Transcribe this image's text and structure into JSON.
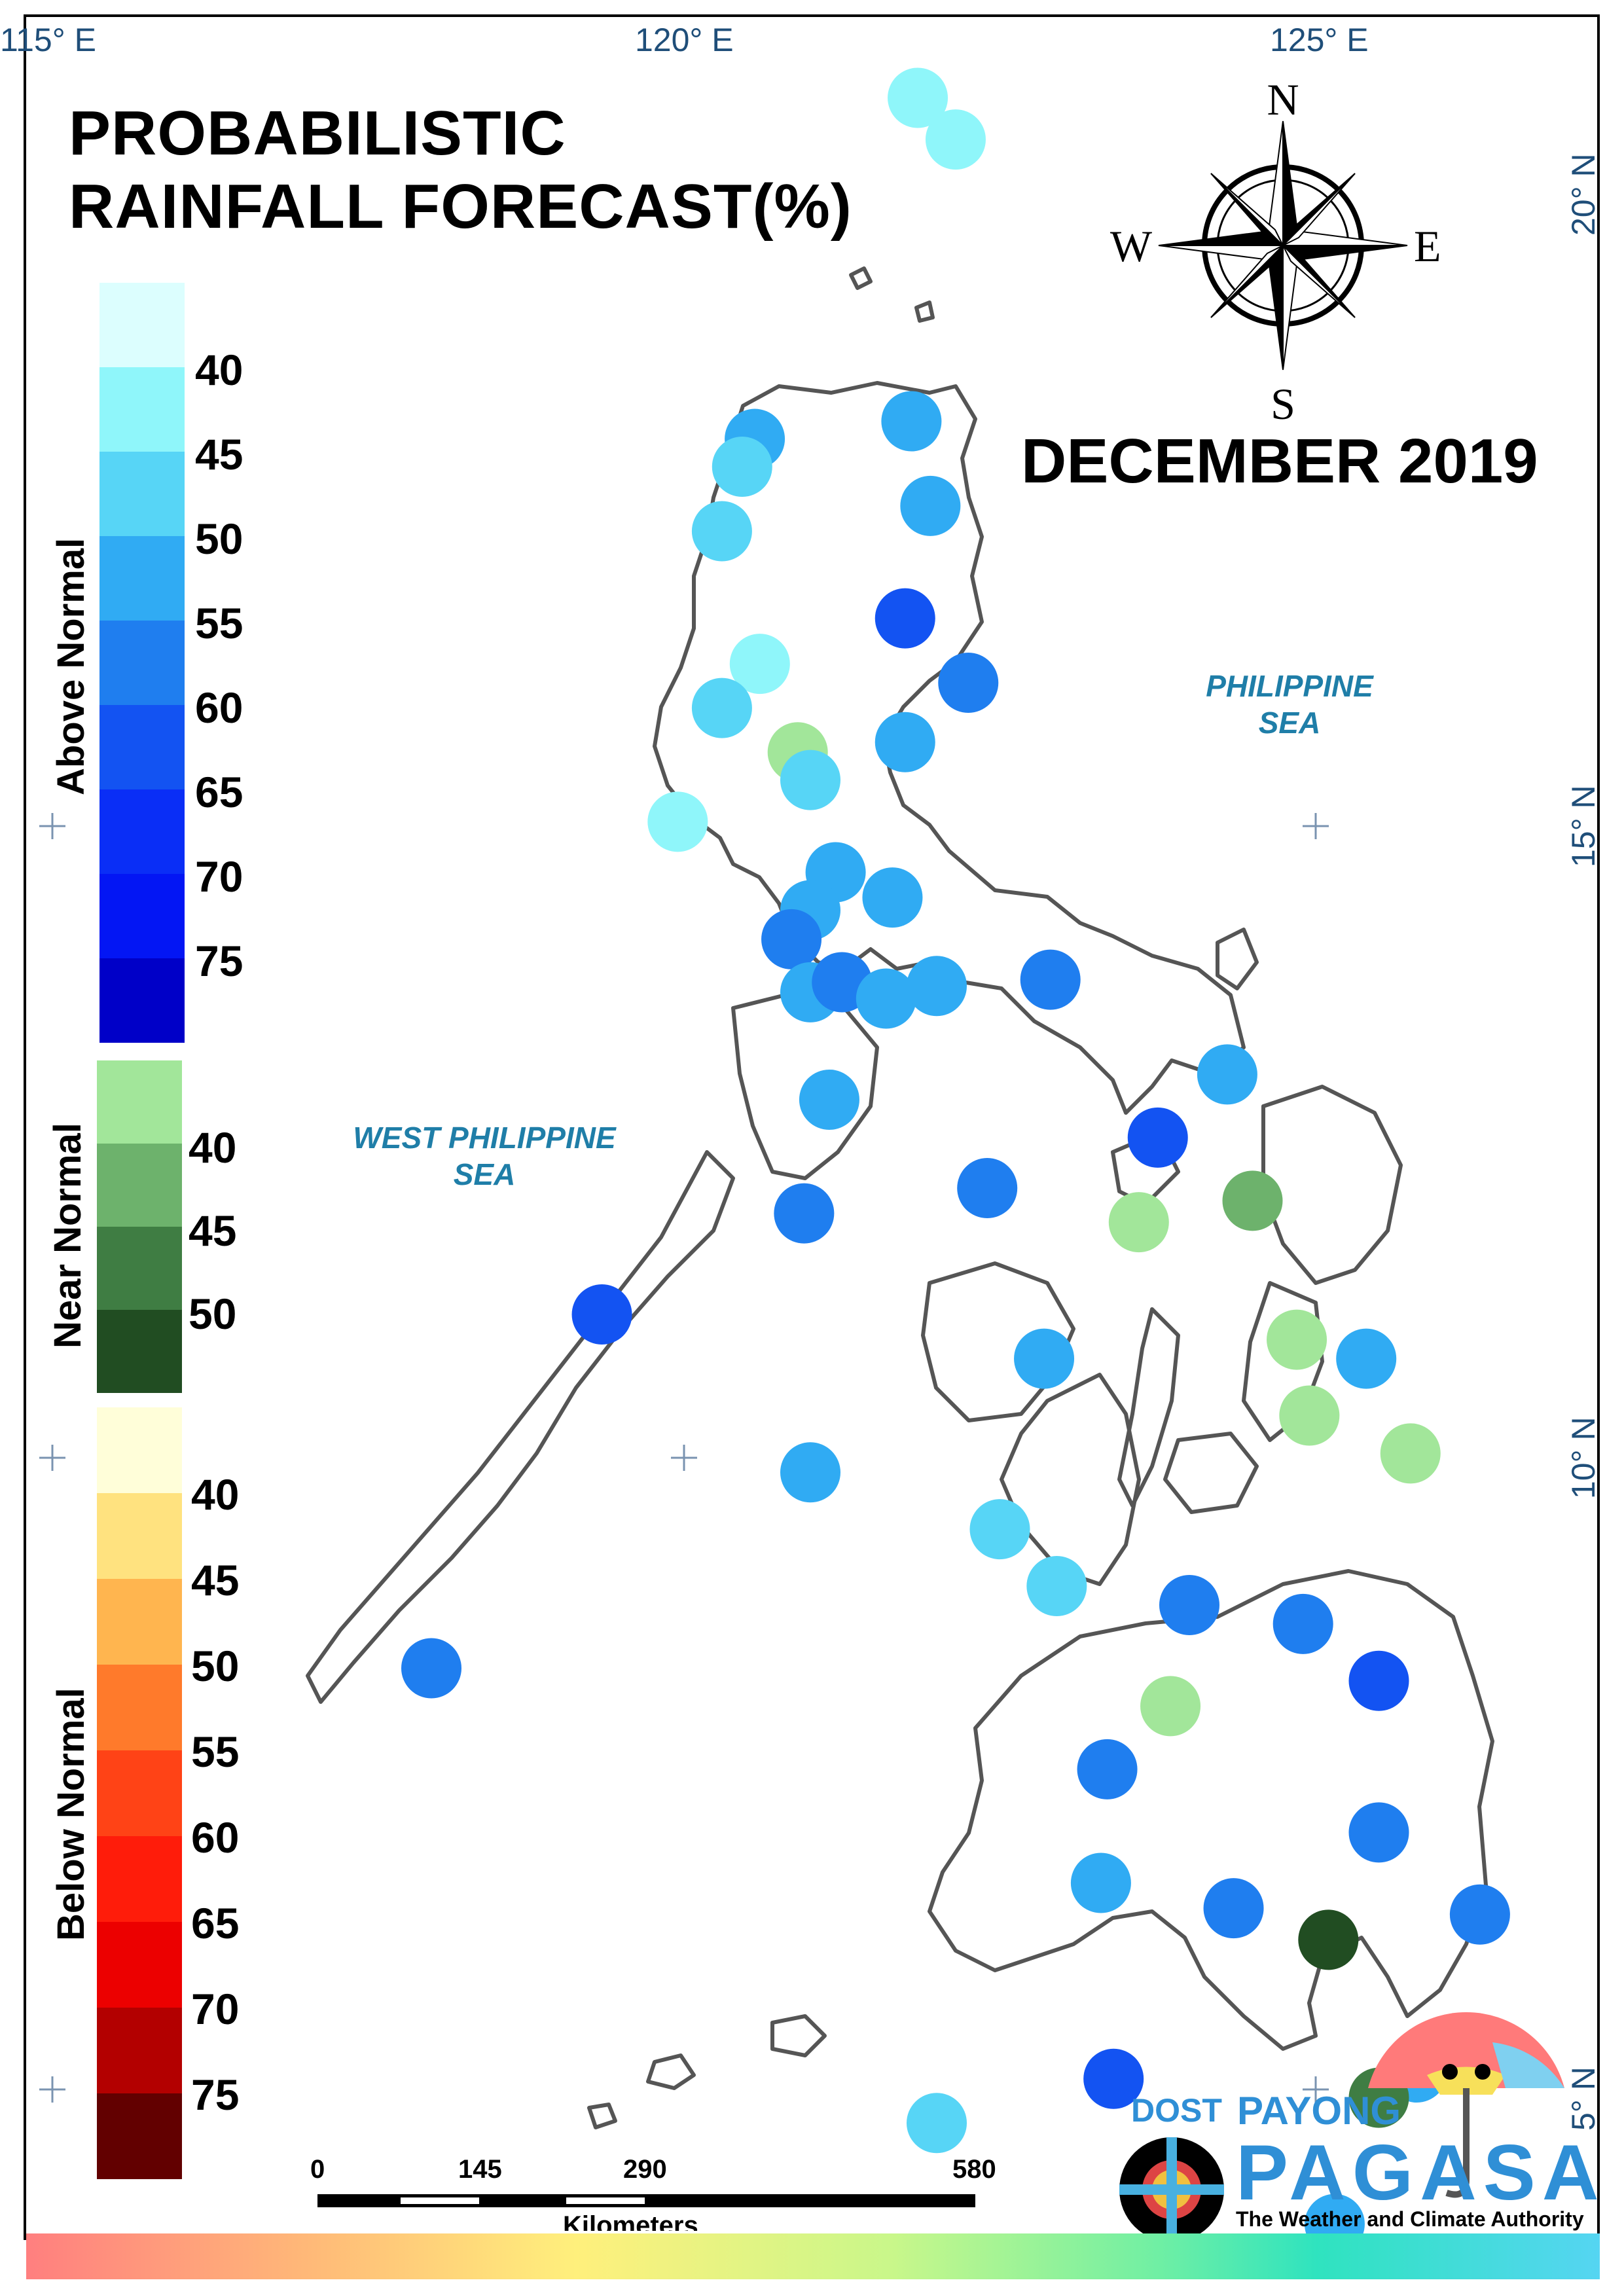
{
  "title_line1": "PROBABILISTIC",
  "title_line2": "RAINFALL FORECAST(%)",
  "forecast_period": "DECEMBER 2019",
  "compass": {
    "north": "N",
    "south": "S",
    "east": "E",
    "west": "W"
  },
  "seas": {
    "east_line1": "PHILIPPINE",
    "east_line2": "SEA",
    "west_line1": "WEST PHILIPPINE",
    "west_line2": "SEA"
  },
  "longitude_labels": [
    "115° E",
    "120° E",
    "125° E"
  ],
  "latitude_labels": [
    "20° N",
    "15° N",
    "10° N",
    "5° N"
  ],
  "legend": {
    "above": {
      "label": "Above Normal",
      "ticks": [
        "40",
        "45",
        "50",
        "55",
        "60",
        "65",
        "70",
        "75"
      ],
      "colors": [
        "#dcfefe",
        "#8ff6fa",
        "#57d5f6",
        "#30abf3",
        "#1f7eef",
        "#1353f2",
        "#0a2ef6",
        "#0316f4",
        "#0000c8"
      ]
    },
    "near": {
      "label": "Near Normal",
      "ticks": [
        "40",
        "45",
        "50"
      ],
      "colors": [
        "#a2e69a",
        "#6db26c",
        "#3f7d43",
        "#214d22"
      ]
    },
    "below": {
      "label": "Below Normal",
      "ticks": [
        "40",
        "45",
        "50",
        "55",
        "60",
        "65",
        "70",
        "75"
      ],
      "colors": [
        "#fffed9",
        "#ffe27f",
        "#ffb54f",
        "#ff7a2b",
        "#ff4316",
        "#ff1c0a",
        "#ec0000",
        "#b30000",
        "#620000"
      ]
    }
  },
  "scale_bar": {
    "ticks": [
      "0",
      "145",
      "290",
      "580"
    ],
    "unit": "Kilometers"
  },
  "branding": {
    "agency": "DOST",
    "line1": "PAYONG",
    "line2": "PAGASA",
    "tagline": "The Weather and Climate Authority"
  },
  "stations": [
    {
      "lon": 121.85,
      "lat": 20.78,
      "color": "#8ff6fa"
    },
    {
      "lon": 122.15,
      "lat": 20.45,
      "color": "#8ff6fa"
    },
    {
      "lon": 120.56,
      "lat": 18.08,
      "color": "#30abf3"
    },
    {
      "lon": 120.46,
      "lat": 17.86,
      "color": "#57d5f6"
    },
    {
      "lon": 120.3,
      "lat": 17.35,
      "color": "#57d5f6"
    },
    {
      "lon": 121.8,
      "lat": 18.22,
      "color": "#30abf3"
    },
    {
      "lon": 121.95,
      "lat": 17.55,
      "color": "#30abf3"
    },
    {
      "lon": 121.75,
      "lat": 16.66,
      "color": "#1353f2"
    },
    {
      "lon": 122.25,
      "lat": 16.15,
      "color": "#1f7eef"
    },
    {
      "lon": 120.6,
      "lat": 16.3,
      "color": "#8ff6fa"
    },
    {
      "lon": 120.3,
      "lat": 15.95,
      "color": "#57d5f6"
    },
    {
      "lon": 120.9,
      "lat": 15.6,
      "color": "#a2e69a"
    },
    {
      "lon": 121.0,
      "lat": 15.38,
      "color": "#57d5f6"
    },
    {
      "lon": 121.75,
      "lat": 15.68,
      "color": "#30abf3"
    },
    {
      "lon": 119.95,
      "lat": 15.05,
      "color": "#8ff6fa"
    },
    {
      "lon": 121.2,
      "lat": 14.65,
      "color": "#30abf3"
    },
    {
      "lon": 121.65,
      "lat": 14.45,
      "color": "#30abf3"
    },
    {
      "lon": 121.0,
      "lat": 14.35,
      "color": "#30abf3"
    },
    {
      "lon": 120.85,
      "lat": 14.12,
      "color": "#1f7eef"
    },
    {
      "lon": 121.0,
      "lat": 13.7,
      "color": "#30abf3"
    },
    {
      "lon": 121.25,
      "lat": 13.78,
      "color": "#1f7eef"
    },
    {
      "lon": 121.6,
      "lat": 13.65,
      "color": "#30abf3"
    },
    {
      "lon": 122.0,
      "lat": 13.75,
      "color": "#30abf3"
    },
    {
      "lon": 122.9,
      "lat": 13.8,
      "color": "#1f7eef"
    },
    {
      "lon": 124.3,
      "lat": 13.05,
      "color": "#30abf3"
    },
    {
      "lon": 121.15,
      "lat": 12.85,
      "color": "#30abf3"
    },
    {
      "lon": 123.75,
      "lat": 12.55,
      "color": "#1353f2"
    },
    {
      "lon": 120.95,
      "lat": 11.95,
      "color": "#1f7eef"
    },
    {
      "lon": 122.4,
      "lat": 12.15,
      "color": "#1f7eef"
    },
    {
      "lon": 123.6,
      "lat": 11.88,
      "color": "#a2e69a"
    },
    {
      "lon": 124.5,
      "lat": 12.05,
      "color": "#6db26c"
    },
    {
      "lon": 119.35,
      "lat": 11.15,
      "color": "#1353f2"
    },
    {
      "lon": 122.85,
      "lat": 10.8,
      "color": "#30abf3"
    },
    {
      "lon": 124.85,
      "lat": 10.95,
      "color": "#a2e69a"
    },
    {
      "lon": 125.4,
      "lat": 10.8,
      "color": "#30abf3"
    },
    {
      "lon": 124.95,
      "lat": 10.35,
      "color": "#a2e69a"
    },
    {
      "lon": 125.75,
      "lat": 10.05,
      "color": "#a2e69a"
    },
    {
      "lon": 121.0,
      "lat": 9.9,
      "color": "#30abf3"
    },
    {
      "lon": 122.5,
      "lat": 9.45,
      "color": "#57d5f6"
    },
    {
      "lon": 122.95,
      "lat": 9.0,
      "color": "#57d5f6"
    },
    {
      "lon": 124.0,
      "lat": 8.85,
      "color": "#1f7eef"
    },
    {
      "lon": 124.9,
      "lat": 8.7,
      "color": "#1f7eef"
    },
    {
      "lon": 125.5,
      "lat": 8.25,
      "color": "#1353f2"
    },
    {
      "lon": 118.0,
      "lat": 8.35,
      "color": "#1f7eef"
    },
    {
      "lon": 123.85,
      "lat": 8.05,
      "color": "#a2e69a"
    },
    {
      "lon": 123.35,
      "lat": 7.55,
      "color": "#1f7eef"
    },
    {
      "lon": 125.5,
      "lat": 7.05,
      "color": "#1f7eef"
    },
    {
      "lon": 123.3,
      "lat": 6.65,
      "color": "#30abf3"
    },
    {
      "lon": 124.35,
      "lat": 6.45,
      "color": "#1f7eef"
    },
    {
      "lon": 125.1,
      "lat": 6.2,
      "color": "#214d22"
    },
    {
      "lon": 126.3,
      "lat": 6.4,
      "color": "#1f7eef"
    },
    {
      "lon": 125.8,
      "lat": 5.15,
      "color": "#30abf3"
    },
    {
      "lon": 125.5,
      "lat": 4.95,
      "color": "#3f7d43"
    },
    {
      "lon": 123.4,
      "lat": 5.1,
      "color": "#1353f2"
    },
    {
      "lon": 122.0,
      "lat": 4.75,
      "color": "#57d5f6"
    },
    {
      "lon": 125.15,
      "lat": 3.95,
      "color": "#30abf3"
    }
  ]
}
